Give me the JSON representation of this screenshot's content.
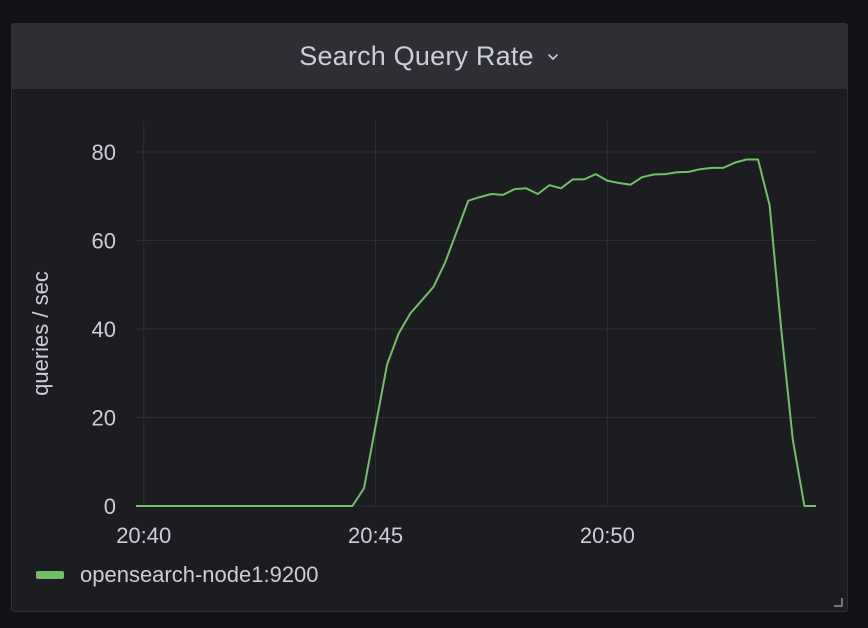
{
  "panel": {
    "title": "Search Query Rate",
    "title_icon": "chevron-down-icon"
  },
  "chart_data": {
    "type": "line",
    "title": "Search Query Rate",
    "ylabel": "queries / sec",
    "xlabel": "",
    "x_tick_labels": [
      "20:40",
      "20:45",
      "20:50"
    ],
    "y_tick_labels": [
      "0",
      "20",
      "40",
      "60",
      "80"
    ],
    "xlim": [
      "20:39:50",
      "20:54:30"
    ],
    "ylim": [
      0,
      87
    ],
    "grid": true,
    "legend_position": "bottom-left",
    "series": [
      {
        "name": "opensearch-node1:9200",
        "color": "#73bf69",
        "points": [
          [
            "20:39:50",
            0
          ],
          [
            "20:44:30",
            0
          ],
          [
            "20:44:45",
            4
          ],
          [
            "20:45:00",
            18
          ],
          [
            "20:45:15",
            32
          ],
          [
            "20:45:30",
            39
          ],
          [
            "20:45:45",
            43.5
          ],
          [
            "20:46:00",
            46.5
          ],
          [
            "20:46:15",
            49.5
          ],
          [
            "20:46:30",
            55
          ],
          [
            "20:46:45",
            62
          ],
          [
            "20:47:00",
            69
          ],
          [
            "20:47:15",
            69.8
          ],
          [
            "20:47:30",
            70.5
          ],
          [
            "20:47:45",
            70.3
          ],
          [
            "20:48:00",
            71.6
          ],
          [
            "20:48:15",
            71.8
          ],
          [
            "20:48:30",
            70.5
          ],
          [
            "20:48:45",
            72.5
          ],
          [
            "20:49:00",
            71.8
          ],
          [
            "20:49:15",
            73.8
          ],
          [
            "20:49:30",
            73.8
          ],
          [
            "20:49:45",
            75.0
          ],
          [
            "20:50:00",
            73.5
          ],
          [
            "20:50:15",
            73.0
          ],
          [
            "20:50:30",
            72.6
          ],
          [
            "20:50:45",
            74.3
          ],
          [
            "20:51:00",
            74.9
          ],
          [
            "20:51:15",
            75.0
          ],
          [
            "20:51:30",
            75.4
          ],
          [
            "20:51:45",
            75.5
          ],
          [
            "20:52:00",
            76.1
          ],
          [
            "20:52:15",
            76.4
          ],
          [
            "20:52:30",
            76.4
          ],
          [
            "20:52:45",
            77.6
          ],
          [
            "20:53:00",
            78.3
          ],
          [
            "20:53:15",
            78.3
          ],
          [
            "20:53:30",
            68
          ],
          [
            "20:53:45",
            40
          ],
          [
            "20:54:00",
            15
          ],
          [
            "20:54:15",
            0
          ],
          [
            "20:54:30",
            0
          ]
        ]
      }
    ]
  }
}
